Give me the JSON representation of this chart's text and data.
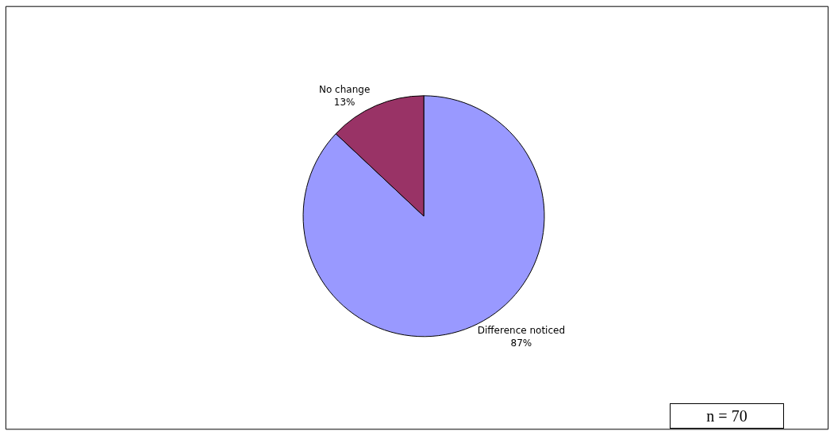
{
  "chart_data": {
    "type": "pie",
    "categories": [
      "Difference noticed",
      "No change"
    ],
    "values": [
      87,
      13
    ],
    "colors": [
      "#9999ff",
      "#993366"
    ],
    "value_labels": [
      "87%",
      "13%"
    ],
    "legend": false,
    "annotations": [
      "n = 70"
    ]
  }
}
